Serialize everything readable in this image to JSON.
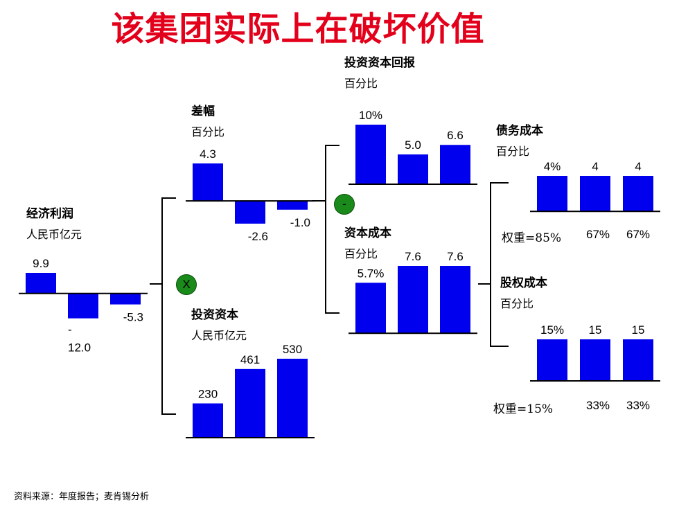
{
  "title": "该集团实际上在破坏价值",
  "source": "资料来源：年度报告；麦肯锡分析",
  "operators": {
    "multiply": "X",
    "minus": "-"
  },
  "colors": {
    "title": "#e3001b",
    "bar": "#0000ee",
    "operator": "#1a8a1a"
  },
  "chart_data": [
    {
      "id": "economic-profit",
      "type": "bar",
      "title": "经济利润",
      "unit": "人民币亿元",
      "values": [
        9.9,
        -12.0,
        -5.3
      ],
      "labels": [
        [
          "9.9"
        ],
        [
          "-",
          "12.0"
        ],
        [
          "-5.3"
        ]
      ]
    },
    {
      "id": "margin",
      "type": "bar",
      "title": "差幅",
      "unit": "百分比",
      "values": [
        4.3,
        -2.6,
        -1.0
      ],
      "labels": [
        [
          "4.3"
        ],
        [
          "-2.6"
        ],
        [
          "-1.0"
        ]
      ]
    },
    {
      "id": "invested-capital",
      "type": "bar",
      "title": "投资资本",
      "unit": "人民币亿元",
      "values": [
        230,
        461,
        530
      ],
      "labels": [
        [
          "230"
        ],
        [
          "461"
        ],
        [
          "530"
        ]
      ]
    },
    {
      "id": "roic",
      "type": "bar",
      "title": "投资资本回报",
      "unit": "百分比",
      "values": [
        10,
        5.0,
        6.6
      ],
      "labels": [
        [
          "10%"
        ],
        [
          "5.0"
        ],
        [
          "6.6"
        ]
      ]
    },
    {
      "id": "cost-of-capital",
      "type": "bar",
      "title": "资本成本",
      "unit": "百分比",
      "values": [
        5.7,
        7.6,
        7.6
      ],
      "labels": [
        [
          "5.7%"
        ],
        [
          "7.6"
        ],
        [
          "7.6"
        ]
      ]
    },
    {
      "id": "cost-of-debt",
      "type": "bar",
      "title": "债务成本",
      "unit": "百分比",
      "values": [
        4,
        4,
        4
      ],
      "labels": [
        [
          "4%"
        ],
        [
          "4"
        ],
        [
          "4"
        ]
      ],
      "weights": {
        "prefix": "权重=",
        "values": [
          "85%",
          "67%",
          "67%"
        ]
      }
    },
    {
      "id": "cost-of-equity",
      "type": "bar",
      "title": "股权成本",
      "unit": "百分比",
      "values": [
        15,
        15,
        15
      ],
      "labels": [
        [
          "15%"
        ],
        [
          "15"
        ],
        [
          "15"
        ]
      ],
      "weights": {
        "prefix": "权重=",
        "values": [
          "15%",
          "33%",
          "33%"
        ]
      }
    }
  ]
}
